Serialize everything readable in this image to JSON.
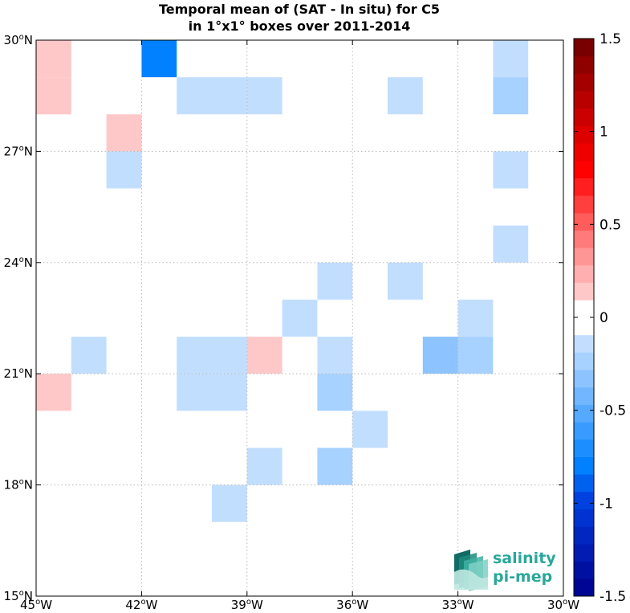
{
  "chart_data": {
    "type": "heatmap",
    "title": "Temporal mean of (SAT - In situ) for C5",
    "subtitle": "in 1°x1° boxes over 2011-2014",
    "xlim": [
      -45,
      -30
    ],
    "ylim": [
      15,
      30
    ],
    "grid": true,
    "x_ticks": [
      {
        "value": -45,
        "label": "45"
      },
      {
        "value": -42,
        "label": "42"
      },
      {
        "value": -39,
        "label": "39"
      },
      {
        "value": -36,
        "label": "36"
      },
      {
        "value": -33,
        "label": "33"
      },
      {
        "value": -30,
        "label": "30"
      }
    ],
    "x_unit_suffix": "W",
    "y_ticks": [
      {
        "value": 15,
        "label": "15"
      },
      {
        "value": 18,
        "label": "18"
      },
      {
        "value": 21,
        "label": "21"
      },
      {
        "value": 24,
        "label": "24"
      },
      {
        "value": 27,
        "label": "27"
      },
      {
        "value": 30,
        "label": "30"
      }
    ],
    "y_unit_suffix": "N",
    "degree_symbol": "o",
    "colorbar": {
      "min": -1.5,
      "max": 1.5,
      "levels": 32,
      "ticks": [
        {
          "value": 1.5,
          "label": "1.5"
        },
        {
          "value": 1.0,
          "label": "1"
        },
        {
          "value": 0.5,
          "label": "0.5"
        },
        {
          "value": 0.0,
          "label": "0"
        },
        {
          "value": -0.5,
          "label": "-0.5"
        },
        {
          "value": -1.0,
          "label": "-1"
        },
        {
          "value": -1.5,
          "label": "-1.5"
        }
      ]
    },
    "cells": [
      {
        "lon": -45,
        "lat": 29,
        "value": 0.15
      },
      {
        "lon": -45,
        "lat": 28,
        "value": 0.15
      },
      {
        "lon": -42,
        "lat": 29,
        "value": -0.8
      },
      {
        "lon": -41,
        "lat": 28,
        "value": -0.1
      },
      {
        "lon": -40,
        "lat": 28,
        "value": -0.1
      },
      {
        "lon": -39,
        "lat": 28,
        "value": -0.1
      },
      {
        "lon": -35,
        "lat": 28,
        "value": -0.1
      },
      {
        "lon": -32,
        "lat": 29,
        "value": -0.1
      },
      {
        "lon": -32,
        "lat": 28,
        "value": -0.2
      },
      {
        "lon": -43,
        "lat": 27,
        "value": 0.15
      },
      {
        "lon": -43,
        "lat": 26,
        "value": -0.1
      },
      {
        "lon": -32,
        "lat": 26,
        "value": -0.1
      },
      {
        "lon": -32,
        "lat": 24,
        "value": -0.1
      },
      {
        "lon": -37,
        "lat": 23,
        "value": -0.1
      },
      {
        "lon": -35,
        "lat": 23,
        "value": -0.1
      },
      {
        "lon": -38,
        "lat": 22,
        "value": -0.1
      },
      {
        "lon": -33,
        "lat": 22,
        "value": -0.1
      },
      {
        "lon": -44,
        "lat": 21,
        "value": -0.1
      },
      {
        "lon": -41,
        "lat": 21,
        "value": -0.1
      },
      {
        "lon": -40,
        "lat": 21,
        "value": -0.1
      },
      {
        "lon": -39,
        "lat": 21,
        "value": 0.15
      },
      {
        "lon": -37,
        "lat": 21,
        "value": -0.1
      },
      {
        "lon": -34,
        "lat": 21,
        "value": -0.35
      },
      {
        "lon": -33,
        "lat": 21,
        "value": -0.25
      },
      {
        "lon": -45,
        "lat": 20,
        "value": 0.15
      },
      {
        "lon": -41,
        "lat": 20,
        "value": -0.1
      },
      {
        "lon": -40,
        "lat": 20,
        "value": -0.1
      },
      {
        "lon": -37,
        "lat": 20,
        "value": -0.25
      },
      {
        "lon": -36,
        "lat": 19,
        "value": -0.1
      },
      {
        "lon": -39,
        "lat": 18,
        "value": -0.1
      },
      {
        "lon": -37,
        "lat": 18,
        "value": -0.25
      },
      {
        "lon": -40,
        "lat": 17,
        "value": -0.1
      }
    ]
  },
  "logo": {
    "line1": "salinity",
    "line2": "pi-mep",
    "color": "#2aa79b"
  }
}
